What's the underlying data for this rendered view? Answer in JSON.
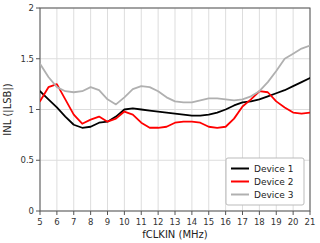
{
  "chart_data": {
    "type": "line",
    "xlabel": "fCLKIN (MHz)",
    "ylabel": "INL (|LSB|)",
    "x": [
      5,
      5.5,
      6,
      6.5,
      7,
      7.5,
      8,
      8.5,
      9,
      9.5,
      10,
      10.5,
      11,
      11.5,
      12,
      12.5,
      13,
      13.5,
      14,
      14.5,
      15,
      15.5,
      16,
      16.5,
      17,
      17.5,
      18,
      18.5,
      19,
      19.5,
      20,
      20.5,
      21
    ],
    "series": [
      {
        "name": "Device 1",
        "color": "#000000",
        "values": [
          1.18,
          1.1,
          1.02,
          0.93,
          0.85,
          0.82,
          0.83,
          0.87,
          0.88,
          0.93,
          1.0,
          1.01,
          1.0,
          0.99,
          0.98,
          0.97,
          0.96,
          0.95,
          0.94,
          0.94,
          0.95,
          0.97,
          1.0,
          1.04,
          1.07,
          1.08,
          1.1,
          1.13,
          1.16,
          1.19,
          1.23,
          1.27,
          1.31
        ]
      },
      {
        "name": "Device 2",
        "color": "#ff0000",
        "values": [
          1.08,
          1.22,
          1.25,
          1.1,
          0.95,
          0.86,
          0.9,
          0.93,
          0.88,
          0.91,
          0.98,
          0.95,
          0.87,
          0.82,
          0.82,
          0.83,
          0.87,
          0.88,
          0.88,
          0.87,
          0.83,
          0.82,
          0.83,
          0.91,
          1.03,
          1.1,
          1.18,
          1.17,
          1.08,
          1.02,
          0.97,
          0.96,
          0.97
        ]
      },
      {
        "name": "Device 3",
        "color": "#b0b0b0",
        "values": [
          1.45,
          1.32,
          1.22,
          1.18,
          1.17,
          1.18,
          1.22,
          1.19,
          1.1,
          1.05,
          1.12,
          1.2,
          1.23,
          1.22,
          1.18,
          1.12,
          1.08,
          1.07,
          1.07,
          1.09,
          1.11,
          1.11,
          1.1,
          1.09,
          1.1,
          1.13,
          1.18,
          1.27,
          1.38,
          1.5,
          1.55,
          1.6,
          1.63
        ]
      }
    ],
    "xlim": [
      5,
      21
    ],
    "ylim": [
      0,
      2
    ],
    "xticks": [
      5,
      6,
      7,
      8,
      9,
      10,
      11,
      12,
      13,
      14,
      15,
      16,
      17,
      18,
      19,
      20,
      21
    ],
    "yticks": [
      0,
      0.5,
      1,
      1.5,
      2
    ],
    "grid": true,
    "legend": "lower right"
  }
}
